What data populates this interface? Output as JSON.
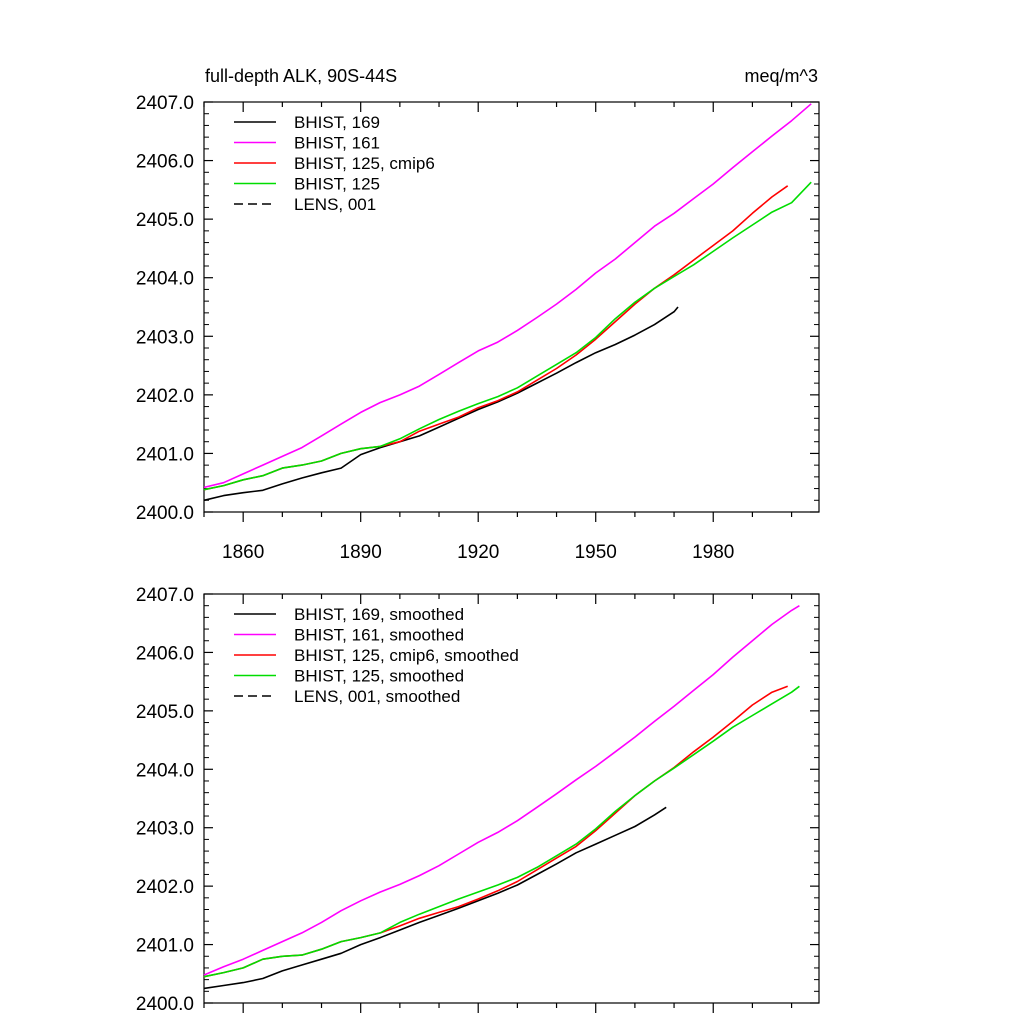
{
  "chart_data": [
    {
      "type": "line",
      "title": "full-depth ALK, 90S-44S",
      "units": "meq/m^3",
      "xlim": [
        1850,
        2007
      ],
      "ylim": [
        2400.0,
        2407.0
      ],
      "xticks": [
        1860,
        1890,
        1920,
        1950,
        1980
      ],
      "yticks": [
        "2400.0",
        "2401.0",
        "2402.0",
        "2403.0",
        "2404.0",
        "2405.0",
        "2406.0",
        "2407.0"
      ],
      "show_x_labels": true,
      "legend_position": "top-left",
      "legend": [
        "BHIST, 169",
        "BHIST, 161",
        "BHIST, 125, cmip6",
        "BHIST, 125",
        "LENS, 001"
      ],
      "series": [
        {
          "name": "BHIST, 169",
          "color": "#000000",
          "dash": "solid",
          "x": [
            1850,
            1855,
            1860,
            1865,
            1870,
            1875,
            1880,
            1885,
            1890,
            1895,
            1900,
            1905,
            1910,
            1915,
            1920,
            1925,
            1930,
            1935,
            1940,
            1945,
            1950,
            1955,
            1960,
            1965,
            1970,
            1971
          ],
          "y": [
            2400.2,
            2400.28,
            2400.33,
            2400.37,
            2400.48,
            2400.58,
            2400.67,
            2400.75,
            2400.98,
            2401.1,
            2401.2,
            2401.3,
            2401.45,
            2401.6,
            2401.75,
            2401.88,
            2402.03,
            2402.2,
            2402.37,
            2402.55,
            2402.72,
            2402.86,
            2403.02,
            2403.2,
            2403.42,
            2403.5
          ]
        },
        {
          "name": "BHIST, 161",
          "color": "#ff00ff",
          "dash": "solid",
          "x": [
            1850,
            1855,
            1860,
            1865,
            1870,
            1875,
            1880,
            1885,
            1890,
            1895,
            1900,
            1905,
            1910,
            1915,
            1920,
            1925,
            1930,
            1935,
            1940,
            1945,
            1950,
            1955,
            1960,
            1965,
            1970,
            1975,
            1980,
            1985,
            1990,
            1995,
            2000,
            2005
          ],
          "y": [
            2400.42,
            2400.5,
            2400.65,
            2400.8,
            2400.95,
            2401.1,
            2401.3,
            2401.5,
            2401.7,
            2401.87,
            2402.0,
            2402.15,
            2402.35,
            2402.55,
            2402.75,
            2402.9,
            2403.1,
            2403.32,
            2403.55,
            2403.8,
            2404.08,
            2404.32,
            2404.6,
            2404.88,
            2405.1,
            2405.35,
            2405.6,
            2405.88,
            2406.15,
            2406.42,
            2406.68,
            2406.97
          ]
        },
        {
          "name": "BHIST, 125, cmip6",
          "color": "#ff0000",
          "dash": "solid",
          "x": [
            1850,
            1855,
            1860,
            1865,
            1870,
            1875,
            1880,
            1885,
            1890,
            1895,
            1900,
            1905,
            1910,
            1915,
            1920,
            1925,
            1930,
            1935,
            1940,
            1945,
            1950,
            1955,
            1960,
            1965,
            1970,
            1975,
            1980,
            1985,
            1990,
            1995,
            1999
          ],
          "y": [
            2400.38,
            2400.45,
            2400.55,
            2400.62,
            2400.75,
            2400.8,
            2400.87,
            2401.0,
            2401.08,
            2401.12,
            2401.2,
            2401.38,
            2401.5,
            2401.62,
            2401.78,
            2401.9,
            2402.05,
            2402.25,
            2402.45,
            2402.68,
            2402.95,
            2403.25,
            2403.55,
            2403.82,
            2404.05,
            2404.3,
            2404.55,
            2404.8,
            2405.1,
            2405.38,
            2405.57
          ]
        },
        {
          "name": "BHIST, 125",
          "color": "#00dd00",
          "dash": "solid",
          "x": [
            1850,
            1855,
            1860,
            1865,
            1870,
            1875,
            1880,
            1885,
            1890,
            1895,
            1900,
            1905,
            1910,
            1915,
            1920,
            1925,
            1930,
            1935,
            1940,
            1945,
            1950,
            1955,
            1960,
            1965,
            1970,
            1975,
            1980,
            1985,
            1990,
            1995,
            2000,
            2005
          ],
          "y": [
            2400.38,
            2400.45,
            2400.55,
            2400.62,
            2400.75,
            2400.8,
            2400.87,
            2401.0,
            2401.08,
            2401.12,
            2401.25,
            2401.42,
            2401.58,
            2401.72,
            2401.85,
            2401.97,
            2402.12,
            2402.32,
            2402.52,
            2402.72,
            2402.98,
            2403.3,
            2403.58,
            2403.82,
            2404.02,
            2404.22,
            2404.45,
            2404.68,
            2404.9,
            2405.12,
            2405.28,
            2405.63
          ]
        }
      ]
    },
    {
      "type": "line",
      "xlim": [
        1850,
        2007
      ],
      "ylim": [
        2400.0,
        2407.0
      ],
      "xticks": [
        1860,
        1890,
        1920,
        1950,
        1980
      ],
      "yticks": [
        "2400.0",
        "2401.0",
        "2402.0",
        "2403.0",
        "2404.0",
        "2405.0",
        "2406.0",
        "2407.0"
      ],
      "show_x_labels": false,
      "legend_position": "top-left",
      "legend": [
        "BHIST, 169, smoothed",
        "BHIST, 161, smoothed",
        "BHIST, 125, cmip6, smoothed",
        "BHIST, 125, smoothed",
        "LENS, 001, smoothed"
      ],
      "series": [
        {
          "name": "BHIST, 169, smoothed",
          "color": "#000000",
          "dash": "solid",
          "x": [
            1850,
            1855,
            1860,
            1865,
            1870,
            1875,
            1880,
            1885,
            1890,
            1895,
            1900,
            1905,
            1910,
            1915,
            1920,
            1925,
            1930,
            1935,
            1940,
            1945,
            1950,
            1955,
            1960,
            1965,
            1968
          ],
          "y": [
            2400.25,
            2400.3,
            2400.35,
            2400.42,
            2400.55,
            2400.65,
            2400.75,
            2400.85,
            2401.0,
            2401.12,
            2401.25,
            2401.38,
            2401.5,
            2401.62,
            2401.75,
            2401.88,
            2402.02,
            2402.2,
            2402.38,
            2402.57,
            2402.72,
            2402.87,
            2403.02,
            2403.22,
            2403.35
          ]
        },
        {
          "name": "BHIST, 161, smoothed",
          "color": "#ff00ff",
          "dash": "solid",
          "x": [
            1850,
            1855,
            1860,
            1865,
            1870,
            1875,
            1880,
            1885,
            1890,
            1895,
            1900,
            1905,
            1910,
            1915,
            1920,
            1925,
            1930,
            1935,
            1940,
            1945,
            1950,
            1955,
            1960,
            1965,
            1970,
            1975,
            1980,
            1985,
            1990,
            1995,
            2000,
            2002
          ],
          "y": [
            2400.48,
            2400.62,
            2400.75,
            2400.9,
            2401.05,
            2401.2,
            2401.38,
            2401.58,
            2401.75,
            2401.9,
            2402.03,
            2402.18,
            2402.35,
            2402.55,
            2402.75,
            2402.92,
            2403.12,
            2403.35,
            2403.58,
            2403.82,
            2404.05,
            2404.3,
            2404.55,
            2404.82,
            2405.08,
            2405.35,
            2405.62,
            2405.92,
            2406.2,
            2406.48,
            2406.72,
            2406.8
          ]
        },
        {
          "name": "BHIST, 125, cmip6, smoothed",
          "color": "#ff0000",
          "dash": "solid",
          "x": [
            1850,
            1855,
            1860,
            1865,
            1870,
            1875,
            1880,
            1885,
            1890,
            1895,
            1900,
            1905,
            1910,
            1915,
            1920,
            1925,
            1930,
            1935,
            1940,
            1945,
            1950,
            1955,
            1960,
            1965,
            1970,
            1975,
            1980,
            1985,
            1990,
            1995,
            1999
          ],
          "y": [
            2400.45,
            2400.52,
            2400.6,
            2400.75,
            2400.8,
            2400.82,
            2400.92,
            2401.05,
            2401.12,
            2401.2,
            2401.32,
            2401.45,
            2401.55,
            2401.65,
            2401.78,
            2401.92,
            2402.08,
            2402.28,
            2402.48,
            2402.68,
            2402.95,
            2403.25,
            2403.55,
            2403.8,
            2404.03,
            2404.3,
            2404.55,
            2404.82,
            2405.1,
            2405.32,
            2405.42
          ]
        },
        {
          "name": "BHIST, 125, smoothed",
          "color": "#00dd00",
          "dash": "solid",
          "x": [
            1850,
            1855,
            1860,
            1865,
            1870,
            1875,
            1880,
            1885,
            1890,
            1895,
            1900,
            1905,
            1910,
            1915,
            1920,
            1925,
            1930,
            1935,
            1940,
            1945,
            1950,
            1955,
            1960,
            1965,
            1970,
            1975,
            1980,
            1985,
            1990,
            1995,
            2000,
            2002
          ],
          "y": [
            2400.45,
            2400.52,
            2400.6,
            2400.75,
            2400.8,
            2400.82,
            2400.92,
            2401.05,
            2401.12,
            2401.2,
            2401.38,
            2401.52,
            2401.65,
            2401.78,
            2401.9,
            2402.02,
            2402.15,
            2402.32,
            2402.52,
            2402.72,
            2402.98,
            2403.28,
            2403.55,
            2403.8,
            2404.02,
            2404.25,
            2404.48,
            2404.72,
            2404.92,
            2405.12,
            2405.32,
            2405.42
          ]
        }
      ]
    }
  ]
}
